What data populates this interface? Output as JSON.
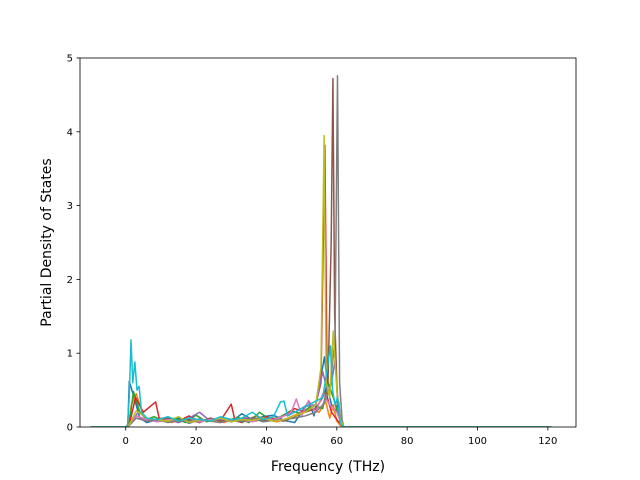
{
  "chart_data": {
    "type": "line",
    "title": "",
    "xlabel": "Frequency (THz)",
    "ylabel": "Partial Density of States",
    "xlim": [
      -13,
      128
    ],
    "ylim": [
      0,
      5
    ],
    "xticks": [
      0,
      20,
      40,
      60,
      80,
      100,
      120
    ],
    "yticks": [
      0,
      1,
      2,
      3,
      4,
      5
    ],
    "grid": false,
    "legend": "none",
    "series": [
      {
        "color": "#1f77b4",
        "x": [
          -10,
          0,
          0.6,
          1.0,
          2.5,
          4,
          6,
          9,
          12,
          15,
          18,
          21,
          24,
          27,
          30,
          33,
          36,
          39,
          42,
          45,
          48,
          50,
          52,
          53.5,
          55,
          56.5,
          57.5,
          58.5,
          59.5,
          60.5,
          61.2,
          62,
          121
        ],
        "y": [
          0,
          0,
          0.02,
          0.62,
          0.38,
          0.12,
          0.06,
          0.1,
          0.08,
          0.12,
          0.05,
          0.1,
          0.08,
          0.12,
          0.07,
          0.18,
          0.1,
          0.14,
          0.16,
          0.09,
          0.06,
          0.2,
          0.35,
          0.15,
          0.55,
          0.95,
          0.5,
          0.3,
          0.2,
          0.35,
          0.05,
          0,
          0
        ]
      },
      {
        "color": "#ff7f0e",
        "x": [
          -10,
          0,
          0.8,
          1.6,
          3,
          5,
          7,
          10,
          13,
          16,
          19,
          22,
          25,
          28,
          31,
          34,
          37,
          40,
          43,
          46,
          49,
          52,
          55,
          56.8,
          58,
          59,
          60,
          61,
          62,
          121
        ],
        "y": [
          0,
          0,
          0.05,
          0.3,
          0.45,
          0.15,
          0.08,
          0.12,
          0.06,
          0.1,
          0.07,
          0.09,
          0.1,
          0.06,
          0.12,
          0.08,
          0.15,
          0.1,
          0.07,
          0.12,
          0.18,
          0.25,
          0.2,
          0.35,
          0.12,
          0.3,
          0.08,
          0.02,
          0,
          0
        ]
      },
      {
        "color": "#2ca02c",
        "x": [
          -10,
          0,
          1,
          2.2,
          4,
          6,
          8,
          11,
          14,
          17,
          20,
          23,
          26,
          29,
          32,
          35,
          38,
          41,
          44,
          47,
          50,
          53,
          56,
          57.5,
          59,
          60.5,
          61.5,
          62,
          121
        ],
        "y": [
          0,
          0,
          0.04,
          0.48,
          0.2,
          0.1,
          0.14,
          0.08,
          0.12,
          0.06,
          0.16,
          0.07,
          0.11,
          0.09,
          0.13,
          0.06,
          0.2,
          0.1,
          0.14,
          0.22,
          0.18,
          0.3,
          0.25,
          0.6,
          0.4,
          0.15,
          0.03,
          0,
          0
        ]
      },
      {
        "color": "#d62728",
        "x": [
          -10,
          0,
          1,
          2.8,
          5,
          8.5,
          9.5,
          12,
          15,
          18,
          21,
          24,
          27,
          30,
          31,
          34,
          37,
          40,
          43,
          46,
          48,
          51,
          54,
          55.5,
          56.6,
          57.3,
          58.5,
          60,
          61.5,
          62,
          121
        ],
        "y": [
          0,
          0,
          0.03,
          0.4,
          0.2,
          0.34,
          0.12,
          0.1,
          0.08,
          0.15,
          0.06,
          0.12,
          0.09,
          0.31,
          0.1,
          0.12,
          0.08,
          0.14,
          0.1,
          0.18,
          0.25,
          0.2,
          0.3,
          0.6,
          3.82,
          0.4,
          0.2,
          0.1,
          0.02,
          0,
          0
        ]
      },
      {
        "color": "#9467bd",
        "x": [
          -10,
          0,
          1,
          3.5,
          6,
          9,
          12,
          15,
          18,
          21,
          24,
          27,
          30,
          33,
          36,
          39,
          42,
          45,
          48,
          51,
          54,
          56,
          57.5,
          58.5,
          59.5,
          60.5,
          61.5,
          62,
          121
        ],
        "y": [
          0,
          0,
          0.02,
          0.2,
          0.12,
          0.08,
          0.1,
          0.06,
          0.12,
          0.2,
          0.08,
          0.1,
          0.07,
          0.12,
          0.09,
          0.11,
          0.08,
          0.15,
          0.2,
          0.28,
          0.3,
          0.75,
          0.45,
          0.6,
          0.9,
          0.25,
          0.03,
          0,
          0
        ]
      },
      {
        "color": "#8c564b",
        "x": [
          -10,
          0,
          1,
          3,
          6,
          9,
          12,
          15,
          18,
          21,
          24,
          27,
          30,
          33,
          36,
          39,
          42,
          45,
          48,
          51,
          54,
          56,
          57.5,
          58.4,
          58.9,
          59.4,
          60.2,
          61.2,
          62,
          121
        ],
        "y": [
          0,
          0,
          0.02,
          0.15,
          0.1,
          0.08,
          0.12,
          0.07,
          0.1,
          0.06,
          0.12,
          0.08,
          0.1,
          0.06,
          0.13,
          0.09,
          0.1,
          0.08,
          0.14,
          0.2,
          0.25,
          0.4,
          0.6,
          2.5,
          4.72,
          1.5,
          0.3,
          0.05,
          0,
          0
        ]
      },
      {
        "color": "#e377c2",
        "x": [
          -10,
          0,
          1,
          3,
          6,
          9,
          12,
          15,
          18,
          21,
          24,
          27,
          30,
          33,
          36,
          39,
          42,
          45,
          47,
          48.5,
          50,
          52,
          54,
          56,
          58,
          60,
          61.5,
          62,
          121
        ],
        "y": [
          0,
          0,
          0.02,
          0.15,
          0.1,
          0.07,
          0.1,
          0.08,
          0.12,
          0.07,
          0.1,
          0.12,
          0.08,
          0.1,
          0.07,
          0.12,
          0.1,
          0.15,
          0.2,
          0.38,
          0.15,
          0.36,
          0.2,
          0.45,
          0.3,
          0.2,
          0.02,
          0,
          0
        ]
      },
      {
        "color": "#7f7f7f",
        "x": [
          -10,
          0,
          1,
          3,
          6,
          9,
          12,
          15,
          18,
          21,
          24,
          27,
          30,
          33,
          36,
          39,
          42,
          45,
          48,
          51,
          54,
          56,
          58,
          59.5,
          60.2,
          60.8,
          61.5,
          62,
          121
        ],
        "y": [
          0,
          0,
          0.02,
          0.12,
          0.08,
          0.1,
          0.06,
          0.09,
          0.07,
          0.11,
          0.08,
          0.06,
          0.1,
          0.08,
          0.12,
          0.07,
          0.09,
          0.1,
          0.12,
          0.15,
          0.2,
          0.3,
          0.5,
          1.2,
          4.76,
          0.6,
          0.1,
          0,
          0
        ]
      },
      {
        "color": "#bcbd22",
        "x": [
          -10,
          0,
          1,
          3,
          6,
          9,
          12,
          15,
          18,
          21,
          24,
          27,
          30,
          33,
          36,
          39,
          42,
          45,
          48,
          51,
          54,
          55.5,
          56.4,
          57,
          58,
          59,
          60,
          61,
          62,
          121
        ],
        "y": [
          0,
          0,
          0.03,
          0.22,
          0.12,
          0.1,
          0.08,
          0.14,
          0.06,
          0.1,
          0.08,
          0.12,
          0.07,
          0.1,
          0.09,
          0.12,
          0.08,
          0.1,
          0.15,
          0.2,
          0.3,
          0.8,
          3.95,
          0.6,
          0.4,
          1.3,
          0.5,
          0.1,
          0,
          0
        ]
      },
      {
        "color": "#17becf",
        "x": [
          -10,
          0,
          0.5,
          1.0,
          1.5,
          2.0,
          2.6,
          3.2,
          3.8,
          4.5,
          6,
          9,
          12,
          15,
          18,
          21,
          24,
          27,
          30,
          33,
          36,
          39,
          42,
          44,
          45,
          46,
          48,
          50,
          52,
          54,
          56,
          57,
          58.2,
          58.8,
          59.5,
          60.2,
          61,
          62,
          121
        ],
        "y": [
          0,
          0,
          0.02,
          0.4,
          1.18,
          0.6,
          0.88,
          0.5,
          0.55,
          0.2,
          0.12,
          0.1,
          0.14,
          0.08,
          0.12,
          0.1,
          0.08,
          0.14,
          0.1,
          0.12,
          0.2,
          0.1,
          0.14,
          0.34,
          0.35,
          0.15,
          0.2,
          0.25,
          0.3,
          0.35,
          0.4,
          0.7,
          1.1,
          0.5,
          0.3,
          0.4,
          0.05,
          0,
          0
        ]
      }
    ]
  }
}
